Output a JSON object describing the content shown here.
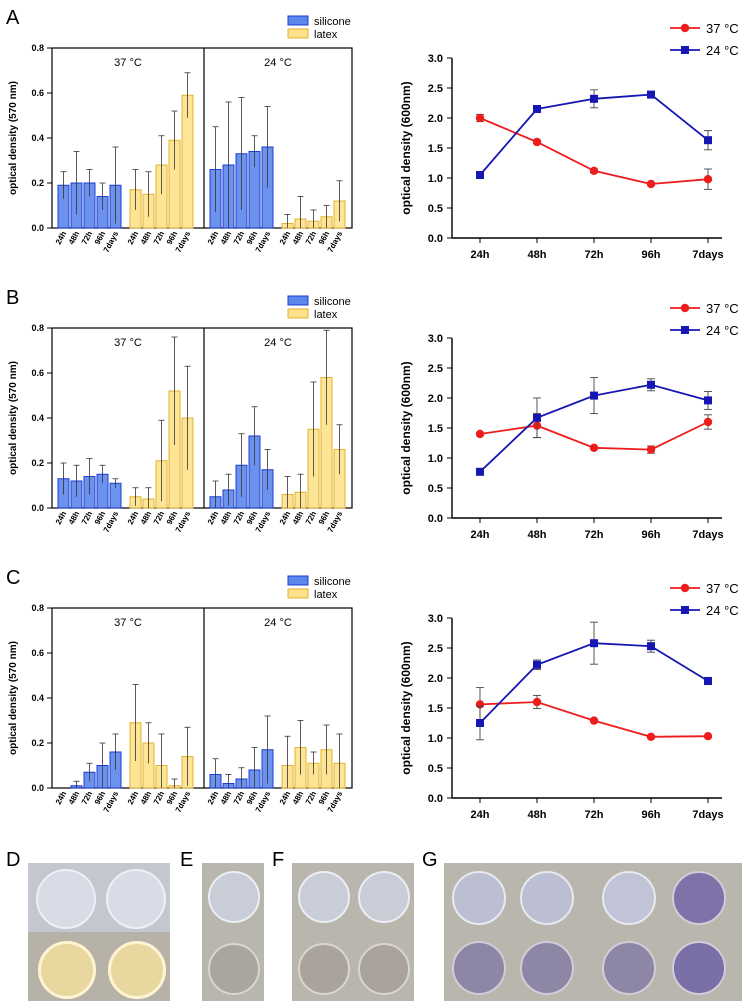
{
  "colors": {
    "silicone_fill": "#5b86ea",
    "silicone_edge": "#1f3dd6",
    "latex_fill": "#fde28a",
    "latex_edge": "#e1b433",
    "red": "#ee1c1c",
    "blue": "#1616b2"
  },
  "panel_labels": [
    "A",
    "B",
    "C",
    "D",
    "E",
    "F",
    "G"
  ],
  "chart_data": [
    {
      "panel": "A",
      "type": "bar",
      "ylabel": "optical density (570 nm)",
      "ylim": [
        0,
        0.8
      ],
      "yticks": [
        "0.0",
        "0.2",
        "0.4",
        "0.6",
        "0.8"
      ],
      "legend": [
        "silicone",
        "latex"
      ],
      "groups": [
        {
          "title": "37 °C",
          "series": [
            {
              "name": "silicone",
              "categories": [
                "24h",
                "48h",
                "72h",
                "96h",
                "7days"
              ],
              "values": [
                0.19,
                0.2,
                0.2,
                0.14,
                0.19
              ],
              "errors": [
                0.06,
                0.14,
                0.06,
                0.06,
                0.17
              ]
            },
            {
              "name": "latex",
              "categories": [
                "24h",
                "48h",
                "72h",
                "96h",
                "7days"
              ],
              "values": [
                0.17,
                0.15,
                0.28,
                0.39,
                0.59
              ],
              "errors": [
                0.09,
                0.1,
                0.13,
                0.13,
                0.1
              ]
            }
          ]
        },
        {
          "title": "24 °C",
          "series": [
            {
              "name": "silicone",
              "categories": [
                "24h",
                "48h",
                "72h",
                "96h",
                "7days"
              ],
              "values": [
                0.26,
                0.28,
                0.33,
                0.34,
                0.36
              ],
              "errors": [
                0.19,
                0.28,
                0.25,
                0.07,
                0.18
              ]
            },
            {
              "name": "latex",
              "categories": [
                "24h",
                "48h",
                "72h",
                "96h",
                "7days"
              ],
              "values": [
                0.02,
                0.04,
                0.03,
                0.05,
                0.12
              ],
              "errors": [
                0.04,
                0.1,
                0.05,
                0.05,
                0.09
              ]
            }
          ]
        }
      ]
    },
    {
      "panel": "A",
      "type": "line",
      "ylabel": "optical density (600nm)",
      "ylim": [
        0,
        3.0
      ],
      "yticks": [
        "0.0",
        "0.5",
        "1.0",
        "1.5",
        "2.0",
        "2.5",
        "3.0"
      ],
      "categories": [
        "24h",
        "48h",
        "72h",
        "96h",
        "7days"
      ],
      "series": [
        {
          "name": "37 °C",
          "values": [
            2.0,
            1.6,
            1.12,
            0.9,
            0.98
          ],
          "errors": [
            0.06,
            0.03,
            0.03,
            0.02,
            0.17
          ]
        },
        {
          "name": "24 °C",
          "values": [
            1.05,
            2.15,
            2.32,
            2.39,
            1.63
          ],
          "errors": [
            0.03,
            0.04,
            0.15,
            0.04,
            0.16
          ]
        }
      ]
    },
    {
      "panel": "B",
      "type": "bar",
      "ylabel": "optical density (570 nm)",
      "ylim": [
        0,
        0.8
      ],
      "yticks": [
        "0.0",
        "0.2",
        "0.4",
        "0.6",
        "0.8"
      ],
      "legend": [
        "silicone",
        "latex"
      ],
      "groups": [
        {
          "title": "37 °C",
          "series": [
            {
              "name": "silicone",
              "categories": [
                "24h",
                "48h",
                "72h",
                "96h",
                "7days"
              ],
              "values": [
                0.13,
                0.12,
                0.14,
                0.15,
                0.11
              ],
              "errors": [
                0.07,
                0.07,
                0.08,
                0.04,
                0.02
              ]
            },
            {
              "name": "latex",
              "categories": [
                "24h",
                "48h",
                "72h",
                "96h",
                "7days"
              ],
              "values": [
                0.05,
                0.04,
                0.21,
                0.52,
                0.4
              ],
              "errors": [
                0.04,
                0.05,
                0.18,
                0.24,
                0.23
              ]
            }
          ]
        },
        {
          "title": "24 °C",
          "series": [
            {
              "name": "silicone",
              "categories": [
                "24h",
                "48h",
                "72h",
                "96h",
                "7days"
              ],
              "values": [
                0.05,
                0.08,
                0.19,
                0.32,
                0.17
              ],
              "errors": [
                0.07,
                0.07,
                0.14,
                0.13,
                0.09
              ]
            },
            {
              "name": "latex",
              "categories": [
                "24h",
                "48h",
                "72h",
                "96h",
                "7days"
              ],
              "values": [
                0.06,
                0.07,
                0.35,
                0.58,
                0.26
              ],
              "errors": [
                0.08,
                0.08,
                0.21,
                0.21,
                0.11
              ]
            }
          ]
        }
      ]
    },
    {
      "panel": "B",
      "type": "line",
      "ylabel": "optical density (600nm)",
      "ylim": [
        0,
        3.0
      ],
      "yticks": [
        "0.0",
        "0.5",
        "1.0",
        "1.5",
        "2.0",
        "2.5",
        "3.0"
      ],
      "categories": [
        "24h",
        "48h",
        "72h",
        "96h",
        "7days"
      ],
      "series": [
        {
          "name": "37 °C",
          "values": [
            1.4,
            1.54,
            1.17,
            1.14,
            1.6
          ],
          "errors": [
            0.02,
            0.2,
            0.02,
            0.06,
            0.12
          ]
        },
        {
          "name": "24 °C",
          "values": [
            0.77,
            1.67,
            2.04,
            2.22,
            1.96
          ],
          "errors": [
            0.02,
            0.33,
            0.3,
            0.1,
            0.15
          ]
        }
      ]
    },
    {
      "panel": "C",
      "type": "bar",
      "ylabel": "optical density (570 nm)",
      "ylim": [
        0,
        0.8
      ],
      "yticks": [
        "0.0",
        "0.2",
        "0.4",
        "0.6",
        "0.8"
      ],
      "legend": [
        "silicone",
        "latex"
      ],
      "groups": [
        {
          "title": "37 °C",
          "series": [
            {
              "name": "silicone",
              "categories": [
                "24h",
                "48h",
                "72h",
                "96h",
                "7days"
              ],
              "values": [
                0.0,
                0.01,
                0.07,
                0.1,
                0.16
              ],
              "errors": [
                0.0,
                0.02,
                0.04,
                0.1,
                0.08
              ]
            },
            {
              "name": "latex",
              "categories": [
                "24h",
                "48h",
                "72h",
                "96h",
                "7days"
              ],
              "values": [
                0.29,
                0.2,
                0.1,
                0.01,
                0.14
              ],
              "errors": [
                0.17,
                0.09,
                0.14,
                0.03,
                0.13
              ]
            }
          ]
        },
        {
          "title": "24 °C",
          "series": [
            {
              "name": "silicone",
              "categories": [
                "24h",
                "48h",
                "72h",
                "96h",
                "7days"
              ],
              "values": [
                0.06,
                0.02,
                0.04,
                0.08,
                0.17
              ],
              "errors": [
                0.07,
                0.04,
                0.05,
                0.1,
                0.15
              ]
            },
            {
              "name": "latex",
              "categories": [
                "24h",
                "48h",
                "72h",
                "96h",
                "7days"
              ],
              "values": [
                0.1,
                0.18,
                0.11,
                0.17,
                0.11
              ],
              "errors": [
                0.13,
                0.12,
                0.05,
                0.11,
                0.13
              ]
            }
          ]
        }
      ]
    },
    {
      "panel": "C",
      "type": "line",
      "ylabel": "optical density (600nm)",
      "ylim": [
        0,
        3.0
      ],
      "yticks": [
        "0.0",
        "0.5",
        "1.0",
        "1.5",
        "2.0",
        "2.5",
        "3.0"
      ],
      "categories": [
        "24h",
        "48h",
        "72h",
        "96h",
        "7days"
      ],
      "series": [
        {
          "name": "37 °C",
          "values": [
            1.56,
            1.6,
            1.29,
            1.02,
            1.03
          ],
          "errors": [
            0.28,
            0.11,
            0.02,
            0.02,
            0.01
          ]
        },
        {
          "name": "24 °C",
          "values": [
            1.25,
            2.22,
            2.58,
            2.53,
            1.95
          ],
          "errors": [
            0.28,
            0.08,
            0.35,
            0.1,
            0.06
          ]
        }
      ]
    }
  ]
}
